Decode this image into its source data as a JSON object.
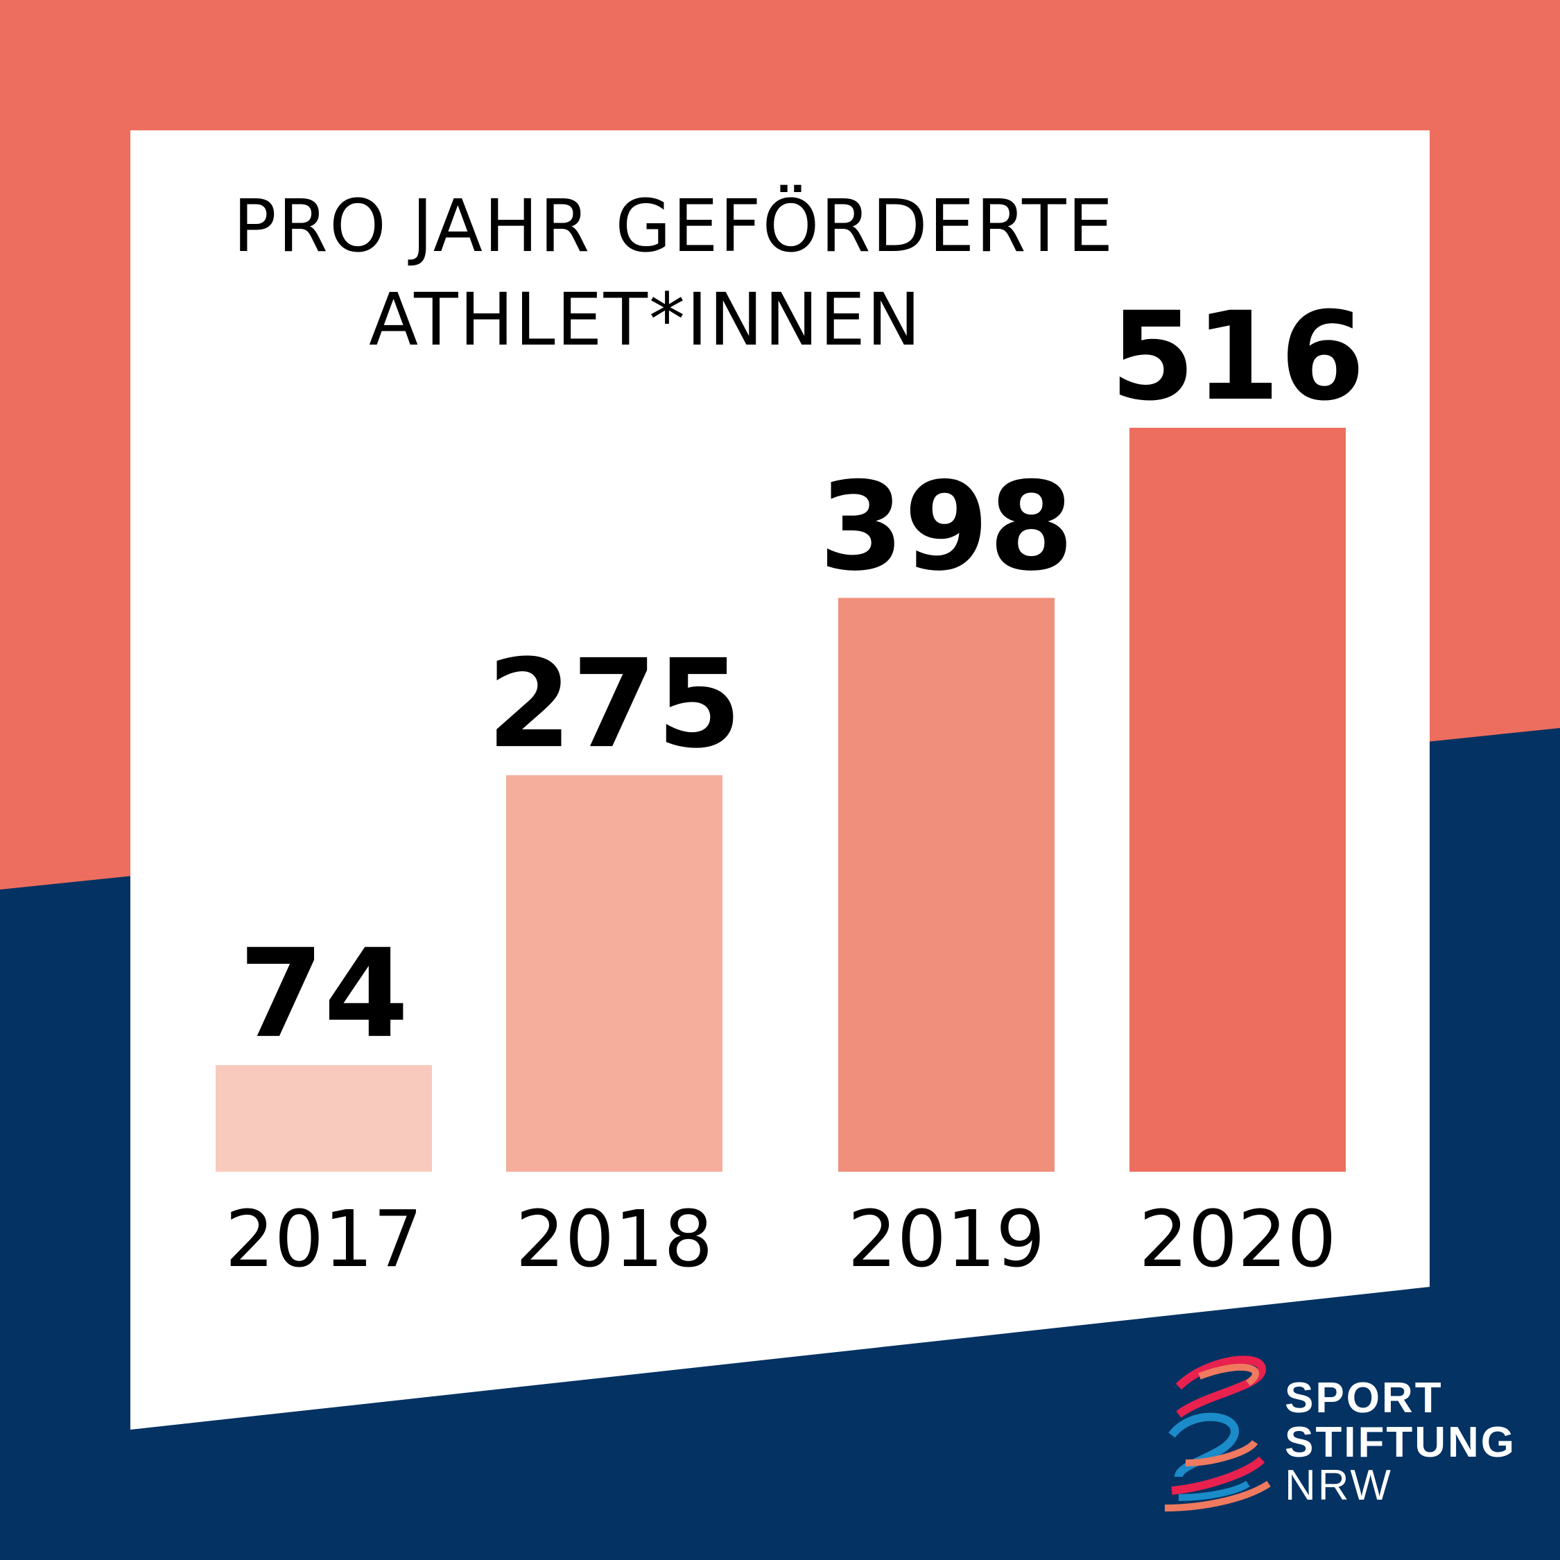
{
  "colors": {
    "background_top": "#ed6e5e",
    "background_bottom": "#033263",
    "panel": "#ffffff",
    "bar_colors": [
      "#f8cabd",
      "#f5ae9b",
      "#f08f7b",
      "#ed6e5e"
    ],
    "text": "#000000"
  },
  "chart_data": {
    "type": "bar",
    "title_lines": [
      "PRO JAHR GEFÖRDERTE",
      "ATHLET*INNEN"
    ],
    "categories": [
      "2017",
      "2018",
      "2019",
      "2020"
    ],
    "values": [
      74,
      275,
      398,
      516
    ],
    "data_labels": [
      "74",
      "275",
      "398",
      "516"
    ],
    "xlabel": "",
    "ylabel": "",
    "ylim": [
      0,
      516
    ],
    "grid": false,
    "legend": "none"
  },
  "logo": {
    "line1": "SPORT",
    "line2": "STIFTUNG",
    "line3": "NRW",
    "colors": [
      "#e8214f",
      "#ef7a5f",
      "#1b8bc9"
    ]
  }
}
